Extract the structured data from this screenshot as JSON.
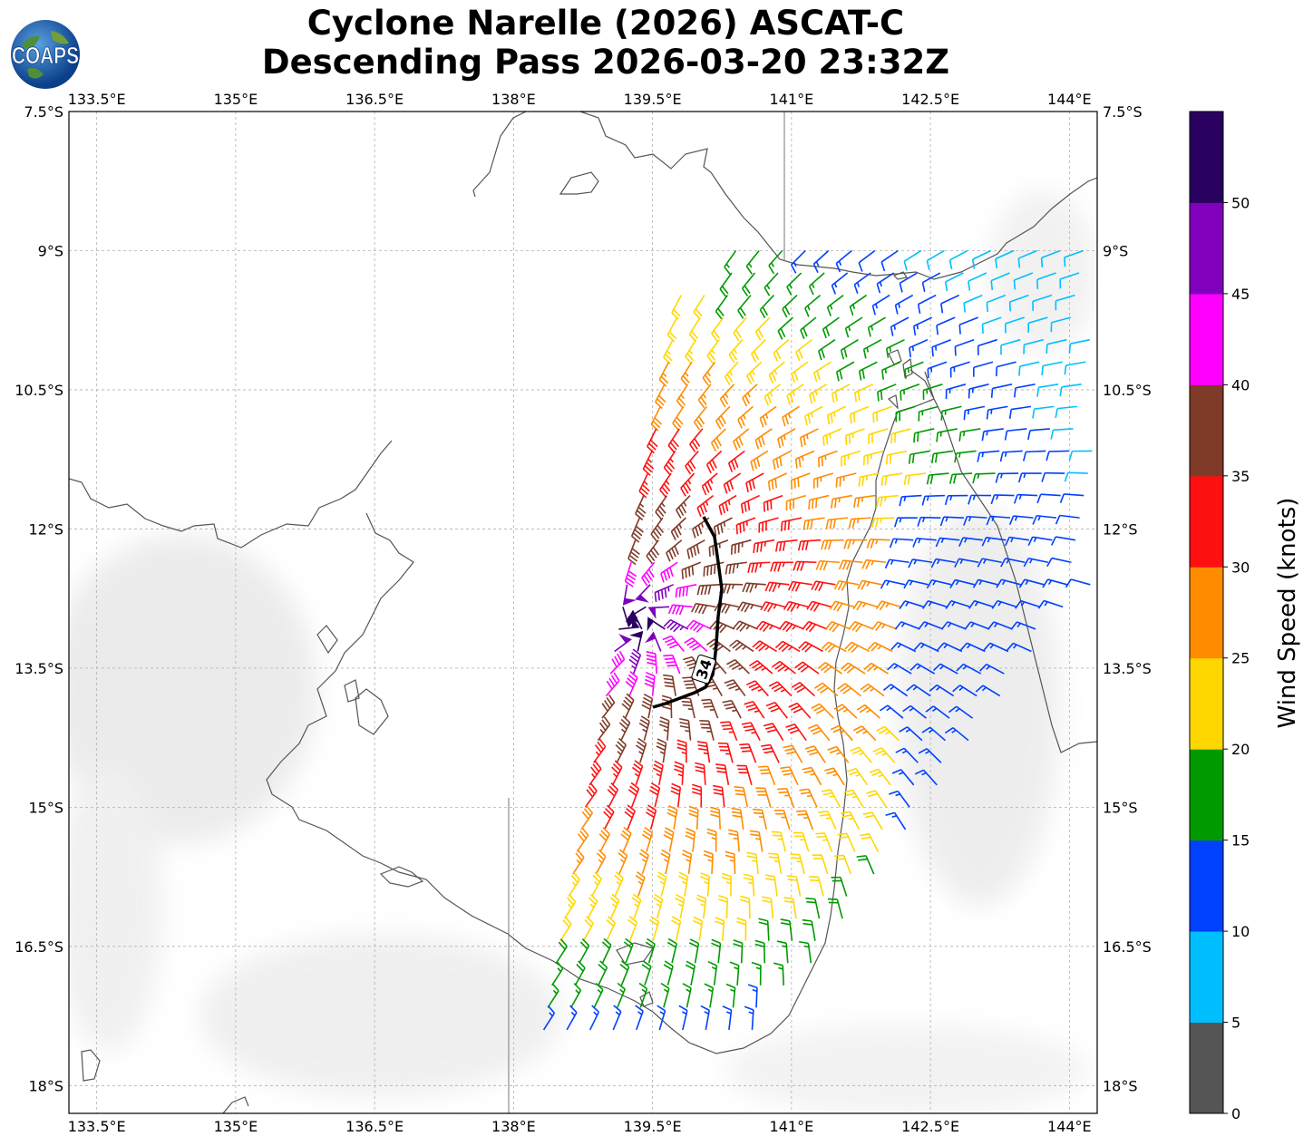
{
  "title": {
    "line1": "Cyclone Narelle (2026) ASCAT-C",
    "line2": "Descending Pass 2026-03-20 23:32Z"
  },
  "logo": {
    "text": "COAPS"
  },
  "map": {
    "lon_range": [
      133.2,
      144.3
    ],
    "lat_range": [
      -18.3,
      -7.5
    ],
    "lon_ticks": [
      "133.5°E",
      "135°E",
      "136.5°E",
      "138°E",
      "139.5°E",
      "141°E",
      "142.5°E",
      "144°E"
    ],
    "lat_ticks": [
      "7.5°S",
      "9°S",
      "10.5°S",
      "12°S",
      "13.5°S",
      "15°S",
      "16.5°S",
      "18°S"
    ],
    "gridlines": true,
    "contour_label": "34",
    "colors": {
      "land": "#ffffff",
      "ocean": "#ffffff",
      "coast": "#555555",
      "grid": "#b0b0b0"
    }
  },
  "colorbar": {
    "label": "Wind Speed (knots)",
    "ticks": [
      "0",
      "5",
      "10",
      "15",
      "20",
      "25",
      "30",
      "35",
      "40",
      "45",
      "50"
    ],
    "colors": [
      "#555555",
      "#00bfff",
      "#0040ff",
      "#009900",
      "#ffd700",
      "#ff8c00",
      "#ff1010",
      "#7f3a28",
      "#ff00ff",
      "#8000bb",
      "#2a0060"
    ]
  }
}
